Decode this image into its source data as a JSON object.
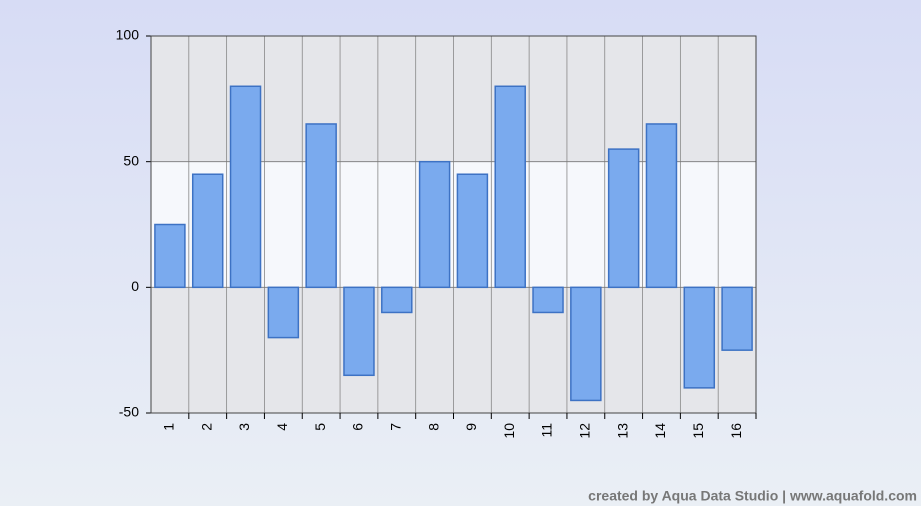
{
  "chart_data": {
    "type": "bar",
    "categories": [
      "1",
      "2",
      "3",
      "4",
      "5",
      "6",
      "7",
      "8",
      "9",
      "10",
      "11",
      "12",
      "13",
      "14",
      "15",
      "16"
    ],
    "values": [
      25,
      45,
      80,
      -20,
      65,
      -35,
      -10,
      50,
      45,
      80,
      -10,
      -45,
      55,
      65,
      -40,
      -25
    ],
    "color": "#7aaaee",
    "ylim": [
      -50,
      100
    ],
    "yticks": [
      -50,
      0,
      50,
      100
    ],
    "grid": true,
    "annotation": "created by Aqua Data Studio | www.aquafold.com"
  }
}
